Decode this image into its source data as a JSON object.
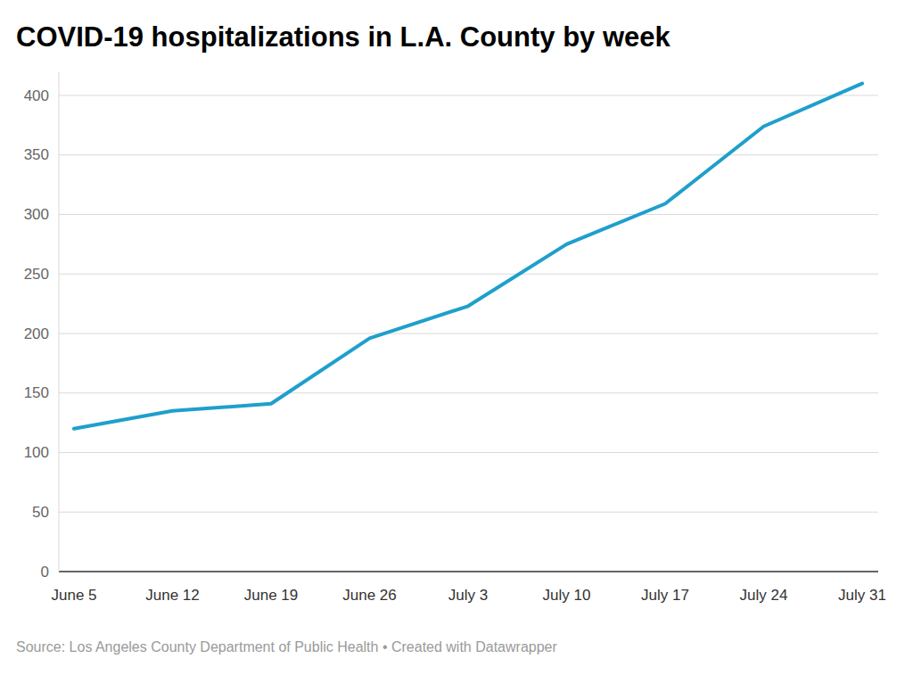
{
  "chart_data": {
    "type": "line",
    "title": "COVID-19 hospitalizations in L.A. County by week",
    "source": "Source: Los Angeles County Department of Public Health • Created with Datawrapper",
    "categories": [
      "June 5",
      "June 12",
      "June 19",
      "June 26",
      "July 3",
      "July 10",
      "July 17",
      "July 24",
      "July 31"
    ],
    "values": [
      120,
      135,
      141,
      196,
      223,
      275,
      309,
      374,
      410
    ],
    "color": "#1f9fcc",
    "ylim": [
      0,
      420
    ],
    "yticks": [
      0,
      50,
      100,
      150,
      200,
      250,
      300,
      350,
      400
    ],
    "grid": true
  }
}
